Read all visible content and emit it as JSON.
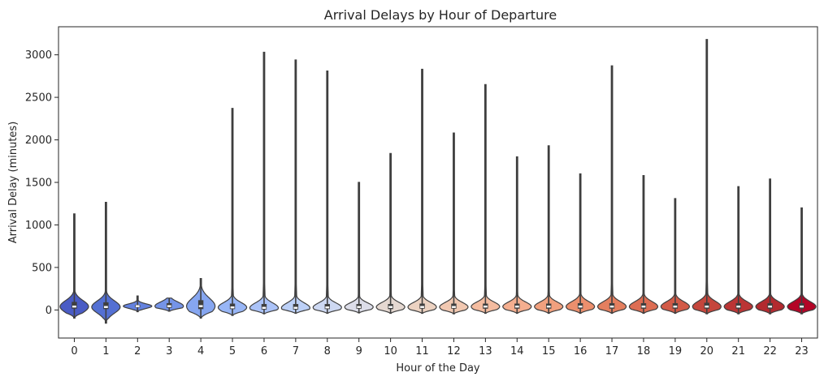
{
  "chart_data": {
    "type": "violin",
    "title": "Arrival Delays by Hour of Departure",
    "xlabel": "Hour of the Day",
    "ylabel": "Arrival Delay (minutes)",
    "ylim": [
      -330,
      3330
    ],
    "yticks": [
      0,
      500,
      1000,
      1500,
      2000,
      2500,
      3000
    ],
    "grid": false,
    "categories": [
      "0",
      "1",
      "2",
      "3",
      "4",
      "5",
      "6",
      "7",
      "8",
      "9",
      "10",
      "11",
      "12",
      "13",
      "14",
      "15",
      "16",
      "17",
      "18",
      "19",
      "20",
      "21",
      "22",
      "23"
    ],
    "colors": [
      "#4a5cc5",
      "#5470d3",
      "#6482df",
      "#7594e8",
      "#86a6f0",
      "#98b6f6",
      "#abc3f8",
      "#bcd0f7",
      "#cdd8f2",
      "#dcdde9",
      "#e5d8d1",
      "#ecd2c1",
      "#f1c8b1",
      "#f4bca0",
      "#f4ae8f",
      "#f1a07e",
      "#ec8f6d",
      "#e47f5f",
      "#dd6d53",
      "#d25a47",
      "#c5463c",
      "#bb3535",
      "#b32a2f",
      "#b40426"
    ],
    "series": [
      {
        "category": "0",
        "min": -95,
        "q1": 15,
        "median": 40,
        "q3": 95,
        "max": 1130
      },
      {
        "category": "1",
        "min": -155,
        "q1": 10,
        "median": 35,
        "q3": 90,
        "max": 1265
      },
      {
        "category": "2",
        "min": -20,
        "q1": 30,
        "median": 45,
        "q3": 60,
        "max": 165
      },
      {
        "category": "3",
        "min": -15,
        "q1": 25,
        "median": 45,
        "q3": 80,
        "max": 140
      },
      {
        "category": "4",
        "min": -95,
        "q1": 10,
        "median": 45,
        "q3": 115,
        "max": 370
      },
      {
        "category": "5",
        "min": -65,
        "q1": 10,
        "median": 30,
        "q3": 75,
        "max": 2370
      },
      {
        "category": "6",
        "min": -45,
        "q1": 5,
        "median": 25,
        "q3": 70,
        "max": 3030
      },
      {
        "category": "7",
        "min": -40,
        "q1": 5,
        "median": 25,
        "q3": 70,
        "max": 2940
      },
      {
        "category": "8",
        "min": -40,
        "q1": 10,
        "median": 30,
        "q3": 70,
        "max": 2810
      },
      {
        "category": "9",
        "min": -35,
        "q1": 15,
        "median": 35,
        "q3": 70,
        "max": 1500
      },
      {
        "category": "10",
        "min": -40,
        "q1": 10,
        "median": 35,
        "q3": 70,
        "max": 1840
      },
      {
        "category": "11",
        "min": -40,
        "q1": 15,
        "median": 35,
        "q3": 75,
        "max": 2830
      },
      {
        "category": "12",
        "min": -45,
        "q1": 15,
        "median": 35,
        "q3": 75,
        "max": 2080
      },
      {
        "category": "13",
        "min": -40,
        "q1": 15,
        "median": 40,
        "q3": 75,
        "max": 2650
      },
      {
        "category": "14",
        "min": -40,
        "q1": 15,
        "median": 40,
        "q3": 75,
        "max": 1800
      },
      {
        "category": "15",
        "min": -40,
        "q1": 15,
        "median": 40,
        "q3": 75,
        "max": 1930
      },
      {
        "category": "16",
        "min": -40,
        "q1": 15,
        "median": 40,
        "q3": 80,
        "max": 1600
      },
      {
        "category": "17",
        "min": -40,
        "q1": 15,
        "median": 40,
        "q3": 80,
        "max": 2870
      },
      {
        "category": "18",
        "min": -40,
        "q1": 15,
        "median": 40,
        "q3": 80,
        "max": 1580
      },
      {
        "category": "19",
        "min": -40,
        "q1": 15,
        "median": 40,
        "q3": 80,
        "max": 1310
      },
      {
        "category": "20",
        "min": -45,
        "q1": 15,
        "median": 40,
        "q3": 85,
        "max": 3180
      },
      {
        "category": "21",
        "min": -45,
        "q1": 15,
        "median": 40,
        "q3": 80,
        "max": 1450
      },
      {
        "category": "22",
        "min": -45,
        "q1": 15,
        "median": 40,
        "q3": 80,
        "max": 1540
      },
      {
        "category": "23",
        "min": -45,
        "q1": 15,
        "median": 40,
        "q3": 80,
        "max": 1200
      }
    ]
  }
}
